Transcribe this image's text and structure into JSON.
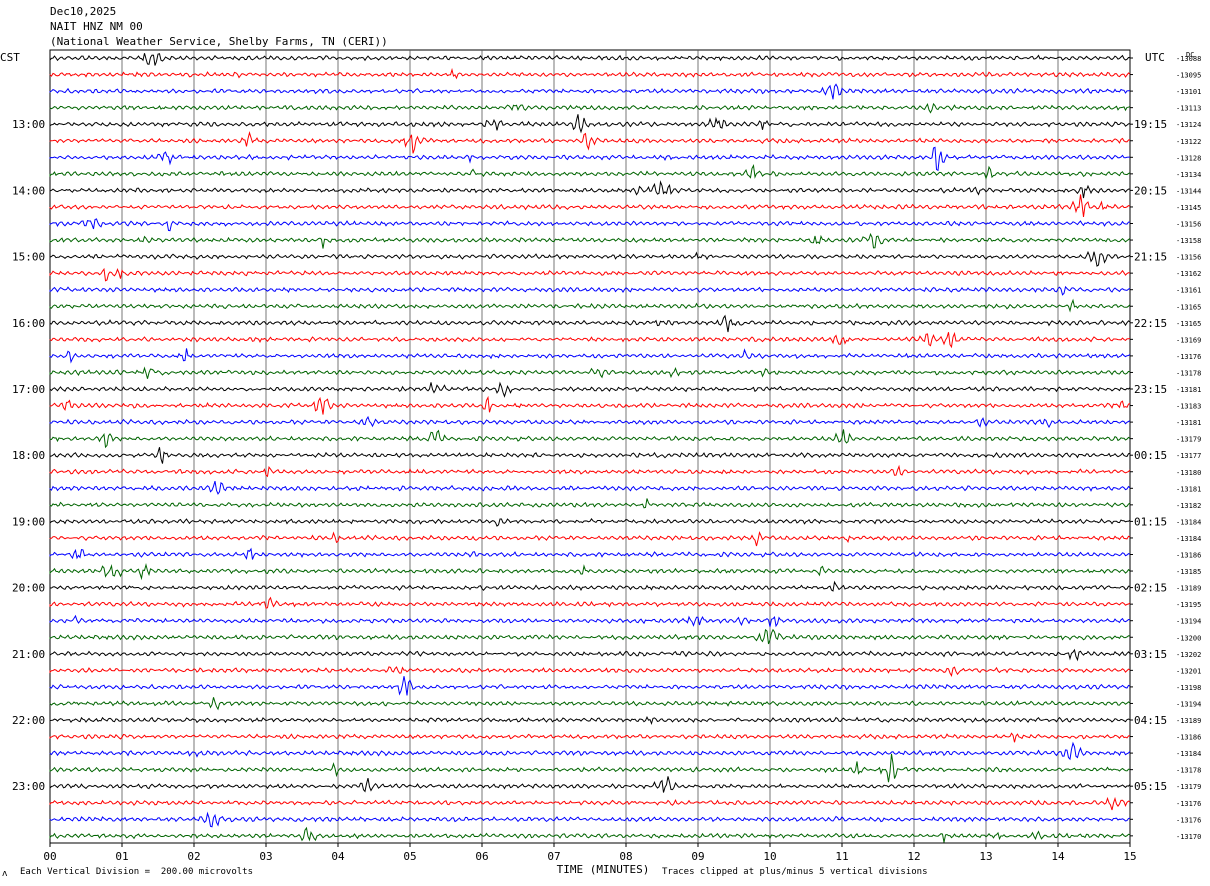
{
  "header": {
    "date": "Dec10,2025",
    "station": "NAIT HNZ NM 00",
    "agency": "(National Weather Service, Shelby Farms, TN (CERI))"
  },
  "left_label": "CST",
  "right_label": "UTC",
  "right_unit": "DC",
  "footer": {
    "scale_note": "Each Vertical Division =  200.00 microvolts",
    "clip_note": "Traces clipped at plus/minus 5 vertical divisions",
    "small_mark": "ʌ"
  },
  "colors": {
    "cycle": [
      "#000000",
      "#ff0000",
      "#0000ff",
      "#006400"
    ],
    "grid": "#000000",
    "background": "#ffffff"
  },
  "chart_data": {
    "type": "line",
    "title": "NAIT HNZ NM 00",
    "xlabel": "TIME (MINUTES)",
    "xlim": [
      0,
      15
    ],
    "x_ticks": [
      "00",
      "01",
      "02",
      "03",
      "04",
      "05",
      "06",
      "07",
      "08",
      "09",
      "10",
      "11",
      "12",
      "13",
      "14",
      "15"
    ],
    "left_time_labels": [
      "13:00",
      "14:00",
      "15:00",
      "16:00",
      "17:00",
      "18:00",
      "19:00",
      "20:00",
      "21:00",
      "22:00",
      "23:00"
    ],
    "right_time_labels": [
      "19:15",
      "20:15",
      "21:15",
      "22:15",
      "23:15",
      "00:15",
      "01:15",
      "02:15",
      "03:15",
      "04:15",
      "05:15"
    ],
    "trace_dc_offsets": [
      -13088,
      -13095,
      -13101,
      -13113,
      -13124,
      -13122,
      -13128,
      -13134,
      -13144,
      -13145,
      -13156,
      -13158,
      -13156,
      -13162,
      -13161,
      -13165,
      -13165,
      -13169,
      -13176,
      -13178,
      -13181,
      -13183,
      -13181,
      -13179,
      -13177,
      -13180,
      -13181,
      -13182,
      -13184,
      -13184,
      -13186,
      -13185,
      -13189,
      -13195,
      -13194,
      -13200,
      -13202,
      -13201,
      -13198,
      -13194,
      -13189,
      -13186,
      -13184,
      -13178,
      -13179,
      -13176,
      -13176,
      -13170
    ],
    "traces_per_hour": 4,
    "minutes_per_trace": 15,
    "grid": true
  }
}
